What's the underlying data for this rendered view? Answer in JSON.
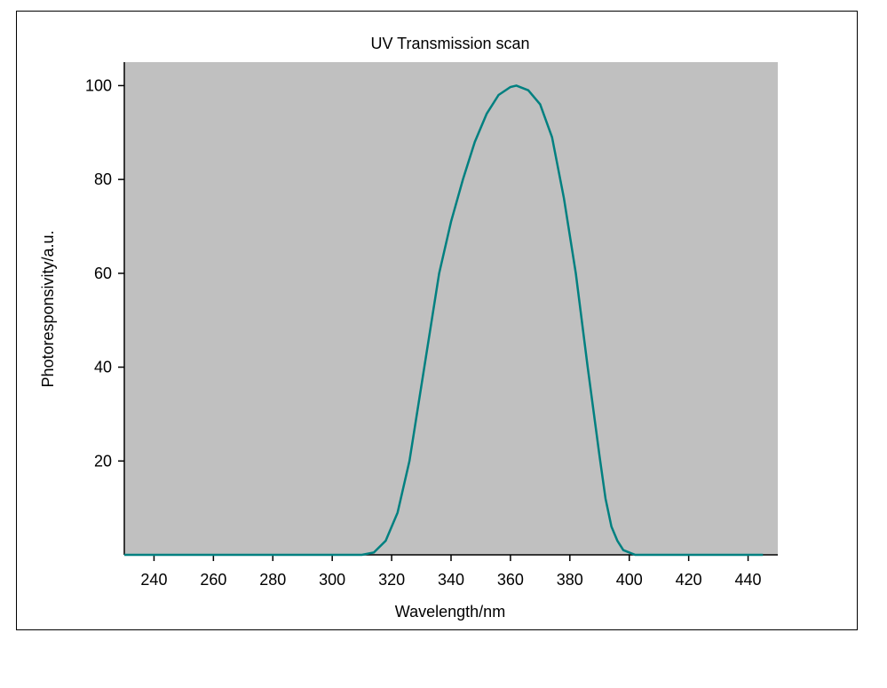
{
  "chart_data": {
    "type": "line",
    "title": "UV Transmission scan",
    "x_label": "Wavelength/nm",
    "y_label": "Photoresponsivity/a.u.",
    "x": [
      230,
      310,
      314,
      318,
      322,
      326,
      331,
      336,
      340,
      344,
      348,
      352,
      356,
      360,
      362,
      366,
      370,
      374,
      378,
      382,
      386,
      390,
      392,
      394,
      396,
      398,
      402,
      445
    ],
    "series": [
      {
        "name": "Photoresponsivity",
        "color": "#008080",
        "values": [
          0,
          0,
          0.5,
          3,
          9,
          20,
          40,
          60,
          71,
          80,
          88,
          94,
          98,
          99.7,
          100,
          99,
          96,
          89,
          76,
          60,
          40,
          21,
          12,
          6,
          3,
          1,
          0,
          0
        ]
      }
    ],
    "xlim": [
      230,
      450
    ],
    "xticks": [
      240,
      260,
      280,
      300,
      320,
      340,
      360,
      380,
      400,
      420,
      440
    ],
    "ylim": [
      0,
      105
    ],
    "yticks": [
      20,
      40,
      60,
      80,
      100
    ],
    "plot_background": "#c0c0c0"
  }
}
